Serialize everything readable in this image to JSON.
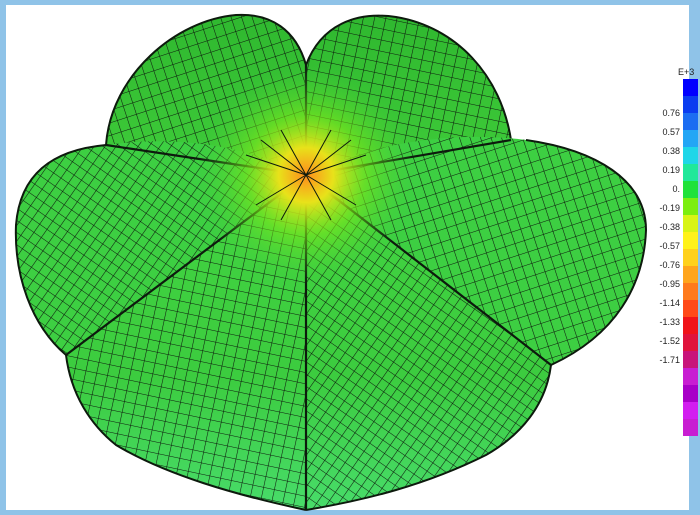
{
  "legend": {
    "exponent": "E+3",
    "ticks": [
      "0.76",
      "0.57",
      "0.38",
      "0.19",
      "0.",
      "-0.19",
      "-0.38",
      "-0.57",
      "-0.76",
      "-0.95",
      "-1.14",
      "-1.33",
      "-1.52",
      "-1.71"
    ],
    "colors": [
      "#0000ff",
      "#0a3cf0",
      "#1b6df2",
      "#23a6f5",
      "#1fd6e8",
      "#20e89a",
      "#1fe23a",
      "#7cee10",
      "#d8f416",
      "#fff21a",
      "#ffd11c",
      "#ffa51c",
      "#ff7a1c",
      "#ff4a1a",
      "#f0141a",
      "#e0143c",
      "#c8147a",
      "#c81ed2",
      "#a800c8",
      "#d21ef0",
      "#c81ed2"
    ]
  },
  "colors": {
    "shell_green": "#38c83a",
    "shell_light": "#4fe07a",
    "shell_dark": "#1f9a28",
    "mesh": "#0d1a0d",
    "apex_hot": "#ff9a1c"
  }
}
